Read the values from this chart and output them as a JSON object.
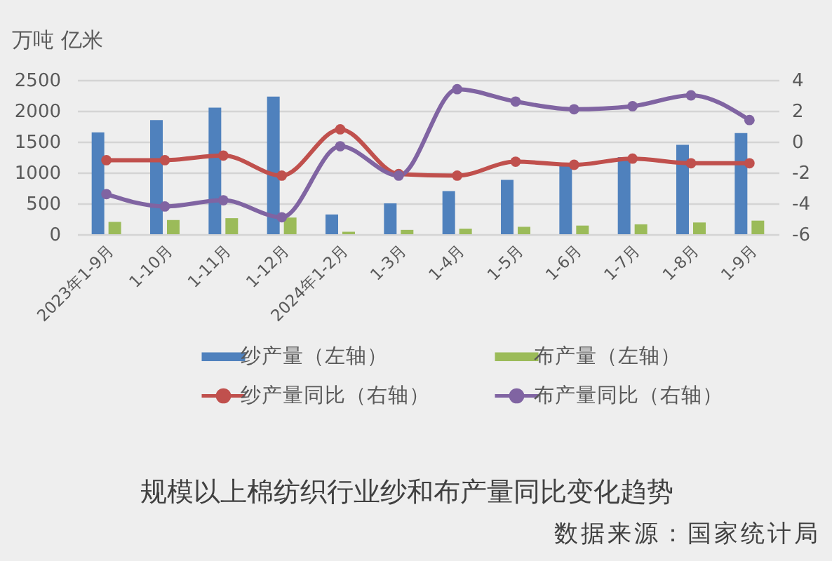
{
  "chart_data": {
    "type": "bar",
    "title": "规模以上棉纺织行业纱和布产量同比变化趋势",
    "ylabel": "万吨 亿米",
    "annotations": [
      "数据来源：国家统计局"
    ],
    "categories": [
      "2023年1-9月",
      "1-10月",
      "1-11月",
      "1-12月",
      "2024年1-2月",
      "1-3月",
      "1-4月",
      "1-5月",
      "1-6月",
      "1-7月",
      "1-8月",
      "1-9月"
    ],
    "series": [
      {
        "name": "纱产量（左轴）",
        "color": "#4f81bd",
        "values": [
          1650,
          1850,
          2050,
          2230,
          320,
          500,
          700,
          880,
          1110,
          1250,
          1450,
          1640
        ]
      },
      {
        "name": "布产量（左轴）",
        "color": "#9bbb59",
        "values": [
          200,
          230,
          260,
          270,
          40,
          70,
          90,
          120,
          140,
          160,
          190,
          220
        ]
      },
      {
        "name": "纱产量同比（右轴）",
        "type": "line",
        "axis": "y2",
        "color": "#c0504d",
        "values": [
          -1.2,
          -1.2,
          -0.9,
          -2.2,
          0.8,
          -2.1,
          -2.2,
          -1.3,
          -1.5,
          -1.1,
          -1.4,
          -1.4
        ]
      },
      {
        "name": "布产量同比（右轴）",
        "type": "line",
        "axis": "y2",
        "color": "#8064a2",
        "values": [
          -3.4,
          -4.2,
          -3.8,
          -4.9,
          -0.3,
          -2.2,
          3.4,
          2.6,
          2.1,
          2.3,
          3.0,
          1.4
        ]
      }
    ],
    "ylim": [
      0,
      2500
    ],
    "yticks": [
      0,
      500,
      1000,
      1500,
      2000,
      2500
    ],
    "y2lim": [
      -6,
      4
    ],
    "y2ticks": [
      -6,
      -4,
      -2,
      0,
      2,
      4
    ],
    "grid": "y",
    "legend": "bottom",
    "marker": "circle"
  }
}
